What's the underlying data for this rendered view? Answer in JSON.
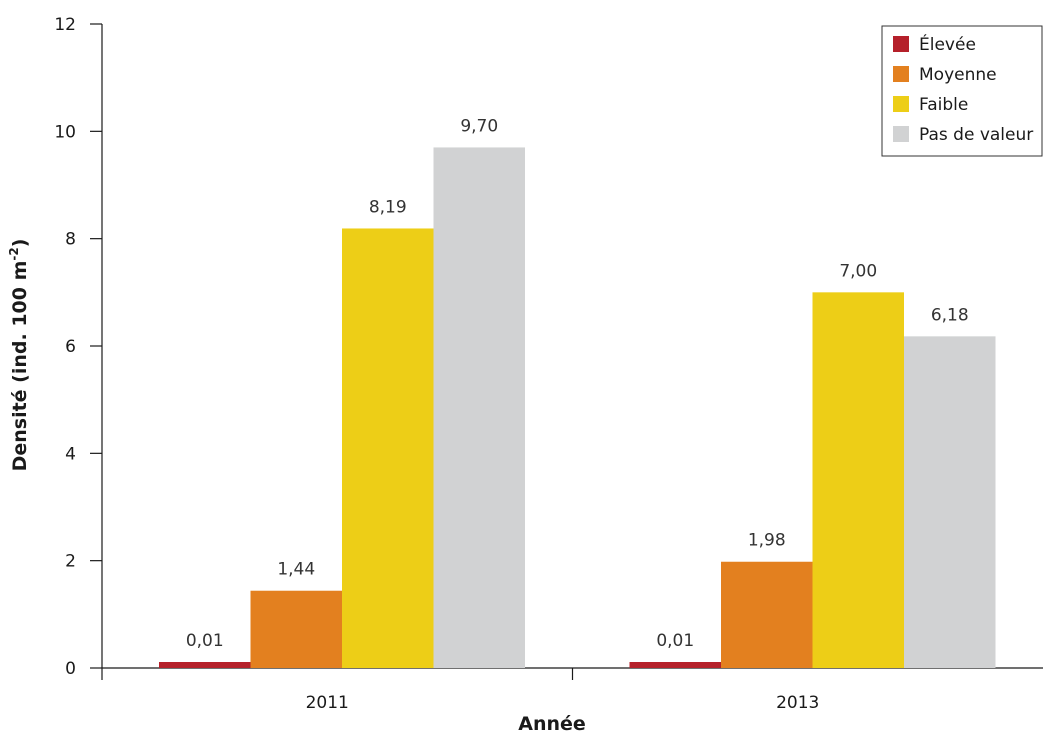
{
  "chart_data": {
    "type": "bar",
    "categories": [
      "2011",
      "2013"
    ],
    "series": [
      {
        "name": "Élevée",
        "color": "#b5202a",
        "values": [
          0.01,
          0.01
        ],
        "labels": [
          "0,01",
          "0,01"
        ]
      },
      {
        "name": "Moyenne",
        "color": "#e3801f",
        "values": [
          1.44,
          1.98
        ],
        "labels": [
          "1,44",
          "1,98"
        ]
      },
      {
        "name": "Faible",
        "color": "#edce17",
        "values": [
          8.19,
          7.0
        ],
        "labels": [
          "8,19",
          "7,00"
        ]
      },
      {
        "name": "Pas de valeur",
        "color": "#d1d2d3",
        "values": [
          9.7,
          6.18
        ],
        "labels": [
          "9,70",
          "6,18"
        ]
      }
    ],
    "xlabel": "Année",
    "ylabel": "Densité (ind. 100 m",
    "ylabel_superscript": "-2",
    "ylabel_suffix": ")",
    "ylim": [
      0,
      12
    ],
    "yticks": [
      0,
      2,
      4,
      6,
      8,
      10,
      12
    ],
    "legend_position": "top-right",
    "grid": false
  }
}
